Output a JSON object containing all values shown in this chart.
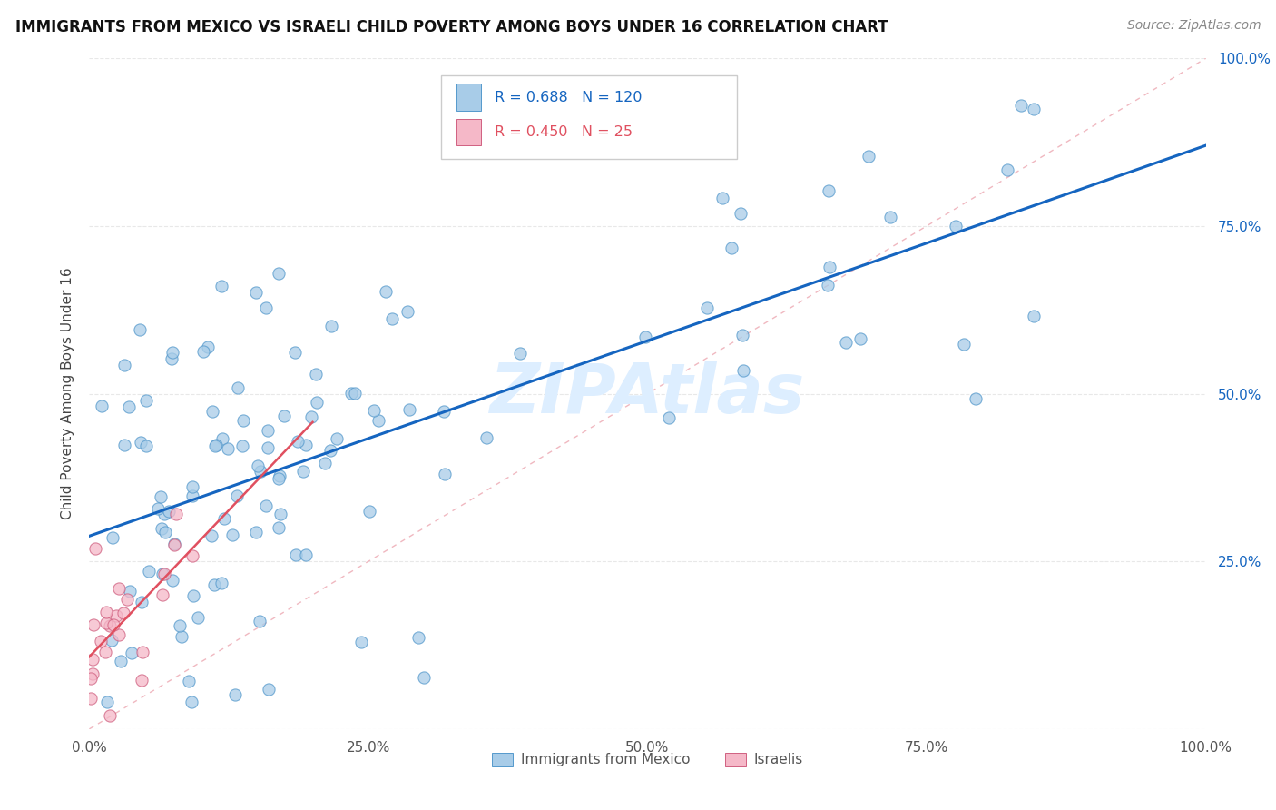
{
  "title": "IMMIGRANTS FROM MEXICO VS ISRAELI CHILD POVERTY AMONG BOYS UNDER 16 CORRELATION CHART",
  "source": "Source: ZipAtlas.com",
  "ylabel": "Child Poverty Among Boys Under 16",
  "blue_label": "Immigrants from Mexico",
  "pink_label": "Israelis",
  "blue_R": 0.688,
  "blue_N": 120,
  "pink_R": 0.45,
  "pink_N": 25,
  "blue_dot_color": "#a8cce8",
  "pink_dot_color": "#f5b8c8",
  "blue_line_color": "#1565c0",
  "pink_line_color": "#e05060",
  "diag_color": "#f0b8c0",
  "grid_color": "#e8e8e8",
  "ytick_color": "#1565c0",
  "watermark_color": "#ddeeff",
  "xlim": [
    0.0,
    1.0
  ],
  "ylim": [
    0.0,
    1.0
  ],
  "xticks": [
    0.0,
    0.25,
    0.5,
    0.75,
    1.0
  ],
  "yticks": [
    0.0,
    0.25,
    0.5,
    0.75,
    1.0
  ],
  "xtick_labels": [
    "0.0%",
    "25.0%",
    "50.0%",
    "75.0%",
    "100.0%"
  ],
  "ytick_labels": [
    "",
    "25.0%",
    "50.0%",
    "75.0%",
    "100.0%"
  ]
}
